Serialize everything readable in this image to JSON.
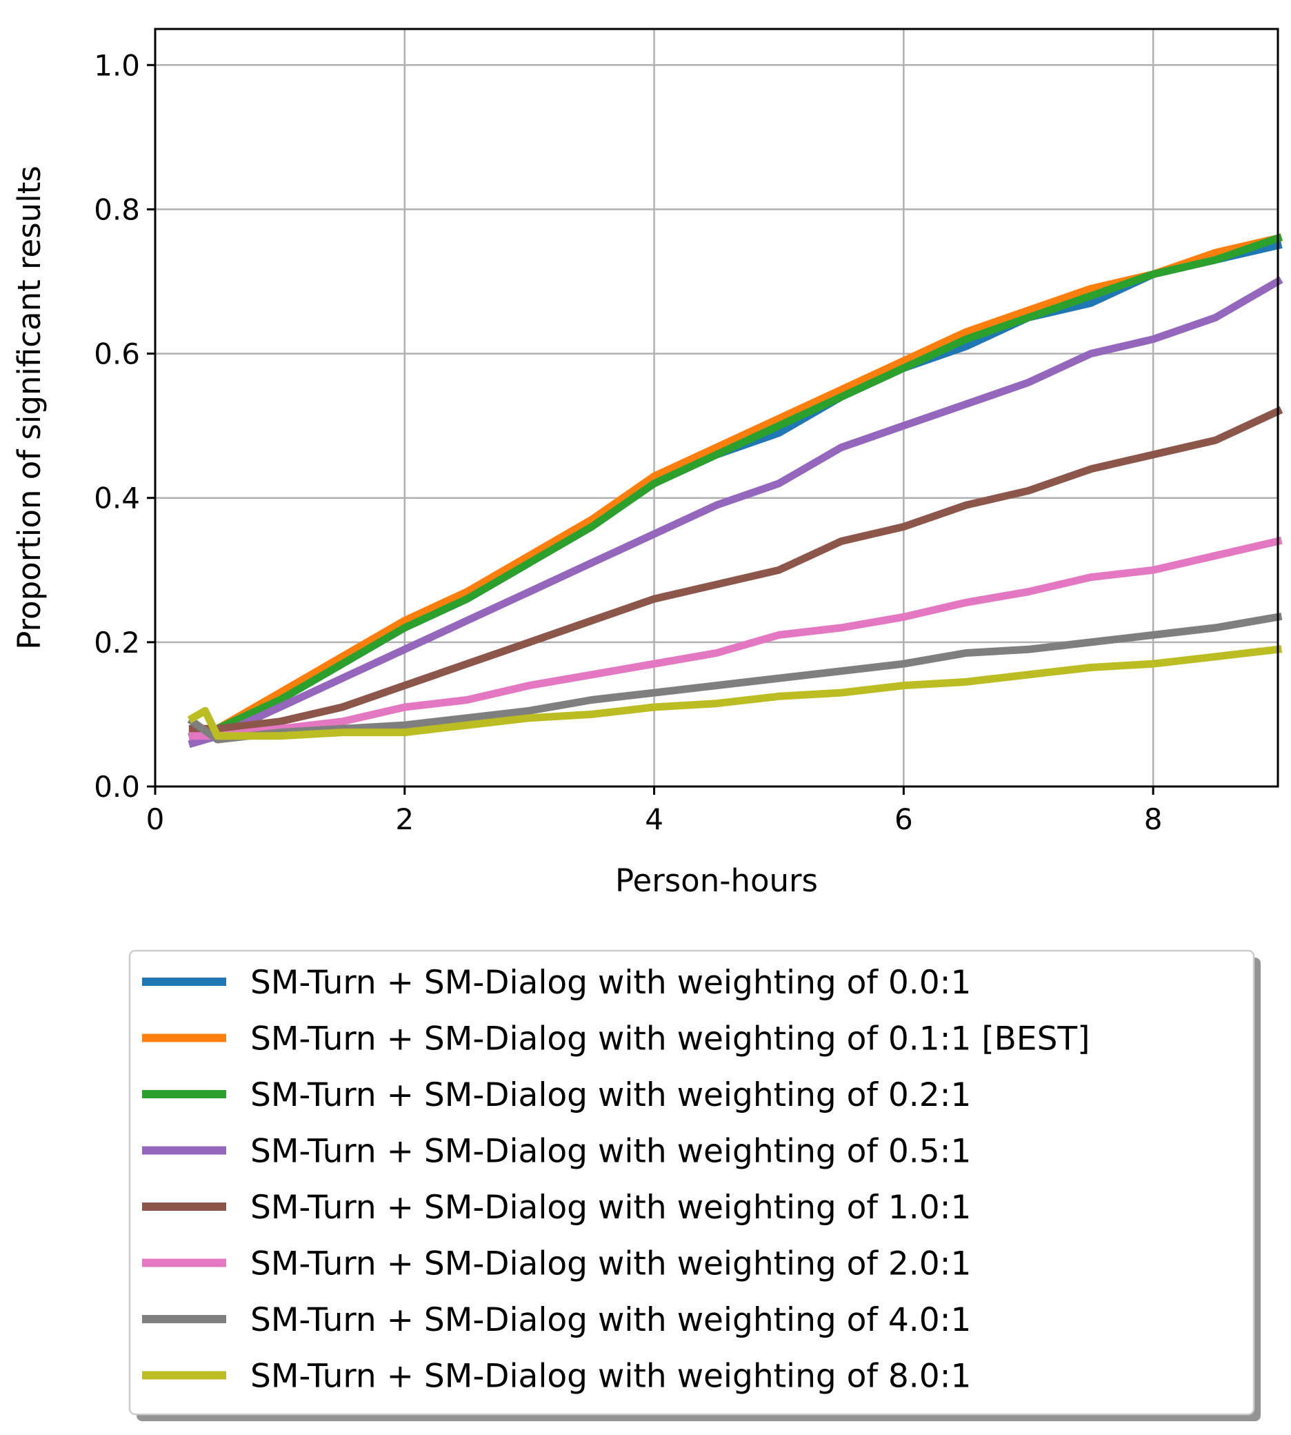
{
  "chart_data": {
    "type": "line",
    "title": "",
    "xlabel": "Person-hours",
    "ylabel": "Proportion of significant results",
    "xlim": [
      0,
      9
    ],
    "ylim": [
      0,
      1.05
    ],
    "xticks": [
      0,
      2,
      4,
      6,
      8
    ],
    "yticks": [
      0.0,
      0.2,
      0.4,
      0.6,
      0.8,
      1.0
    ],
    "xtick_labels": [
      "0",
      "2",
      "4",
      "6",
      "8"
    ],
    "ytick_labels": [
      "0.0",
      "0.2",
      "0.4",
      "0.6",
      "0.8",
      "1.0"
    ],
    "grid": true,
    "legend_position": "below",
    "series": [
      {
        "name": "SM-Turn + SM-Dialog with weighting of 0.0:1",
        "color": "#1f77b4",
        "x": [
          0.3,
          0.5,
          1.0,
          1.5,
          2.0,
          2.5,
          3.0,
          3.5,
          4.0,
          4.5,
          5.0,
          5.5,
          6.0,
          6.5,
          7.0,
          7.5,
          8.0,
          8.5,
          9.0
        ],
        "y": [
          0.07,
          0.08,
          0.12,
          0.17,
          0.22,
          0.26,
          0.31,
          0.37,
          0.42,
          0.46,
          0.49,
          0.54,
          0.58,
          0.61,
          0.65,
          0.67,
          0.71,
          0.73,
          0.75
        ]
      },
      {
        "name": "SM-Turn + SM-Dialog with weighting of 0.1:1 [BEST]",
        "color": "#ff7f0e",
        "x": [
          0.3,
          0.5,
          1.0,
          1.5,
          2.0,
          2.5,
          3.0,
          3.5,
          4.0,
          4.5,
          5.0,
          5.5,
          6.0,
          6.5,
          7.0,
          7.5,
          8.0,
          8.5,
          9.0
        ],
        "y": [
          0.07,
          0.08,
          0.13,
          0.18,
          0.23,
          0.27,
          0.32,
          0.37,
          0.43,
          0.47,
          0.51,
          0.55,
          0.59,
          0.63,
          0.66,
          0.69,
          0.71,
          0.74,
          0.76
        ]
      },
      {
        "name": "SM-Turn + SM-Dialog with weighting of 0.2:1",
        "color": "#2ca02c",
        "x": [
          0.3,
          0.5,
          1.0,
          1.5,
          2.0,
          2.5,
          3.0,
          3.5,
          4.0,
          4.5,
          5.0,
          5.5,
          6.0,
          6.5,
          7.0,
          7.5,
          8.0,
          8.5,
          9.0
        ],
        "y": [
          0.07,
          0.08,
          0.12,
          0.17,
          0.22,
          0.26,
          0.31,
          0.36,
          0.42,
          0.46,
          0.5,
          0.54,
          0.58,
          0.62,
          0.65,
          0.68,
          0.71,
          0.73,
          0.76
        ]
      },
      {
        "name": "SM-Turn + SM-Dialog with weighting of 0.5:1",
        "color": "#9467bd",
        "x": [
          0.3,
          0.5,
          1.0,
          1.5,
          2.0,
          2.5,
          3.0,
          3.5,
          4.0,
          4.5,
          5.0,
          5.5,
          6.0,
          6.5,
          7.0,
          7.5,
          8.0,
          8.5,
          9.0
        ],
        "y": [
          0.06,
          0.07,
          0.11,
          0.15,
          0.19,
          0.23,
          0.27,
          0.31,
          0.35,
          0.39,
          0.42,
          0.47,
          0.5,
          0.53,
          0.56,
          0.6,
          0.62,
          0.65,
          0.7
        ]
      },
      {
        "name": "SM-Turn + SM-Dialog with weighting of 1.0:1",
        "color": "#8c564b",
        "x": [
          0.3,
          0.5,
          1.0,
          1.5,
          2.0,
          2.5,
          3.0,
          3.5,
          4.0,
          4.5,
          5.0,
          5.5,
          6.0,
          6.5,
          7.0,
          7.5,
          8.0,
          8.5,
          9.0
        ],
        "y": [
          0.08,
          0.08,
          0.09,
          0.11,
          0.14,
          0.17,
          0.2,
          0.23,
          0.26,
          0.28,
          0.3,
          0.34,
          0.36,
          0.39,
          0.41,
          0.44,
          0.46,
          0.48,
          0.52
        ]
      },
      {
        "name": "SM-Turn + SM-Dialog with weighting of 2.0:1",
        "color": "#e377c2",
        "x": [
          0.3,
          0.5,
          1.0,
          1.5,
          2.0,
          2.5,
          3.0,
          3.5,
          4.0,
          4.5,
          5.0,
          5.5,
          6.0,
          6.5,
          7.0,
          7.5,
          8.0,
          8.5,
          9.0
        ],
        "y": [
          0.07,
          0.07,
          0.08,
          0.09,
          0.11,
          0.12,
          0.14,
          0.155,
          0.17,
          0.185,
          0.21,
          0.22,
          0.235,
          0.255,
          0.27,
          0.29,
          0.3,
          0.32,
          0.34
        ]
      },
      {
        "name": "SM-Turn + SM-Dialog with weighting of 4.0:1",
        "color": "#7f7f7f",
        "x": [
          0.3,
          0.5,
          1.0,
          1.5,
          2.0,
          2.5,
          3.0,
          3.5,
          4.0,
          4.5,
          5.0,
          5.5,
          6.0,
          6.5,
          7.0,
          7.5,
          8.0,
          8.5,
          9.0
        ],
        "y": [
          0.09,
          0.065,
          0.075,
          0.08,
          0.085,
          0.095,
          0.105,
          0.12,
          0.13,
          0.14,
          0.15,
          0.16,
          0.17,
          0.185,
          0.19,
          0.2,
          0.21,
          0.22,
          0.235
        ]
      },
      {
        "name": "SM-Turn + SM-Dialog with weighting of 8.0:1",
        "color": "#bcbd22",
        "x": [
          0.3,
          0.4,
          0.5,
          1.0,
          1.5,
          2.0,
          2.5,
          3.0,
          3.5,
          4.0,
          4.5,
          5.0,
          5.5,
          6.0,
          6.5,
          7.0,
          7.5,
          8.0,
          8.5,
          9.0
        ],
        "y": [
          0.095,
          0.105,
          0.07,
          0.07,
          0.075,
          0.075,
          0.085,
          0.095,
          0.1,
          0.11,
          0.115,
          0.125,
          0.13,
          0.14,
          0.145,
          0.155,
          0.165,
          0.17,
          0.18,
          0.19
        ]
      }
    ]
  }
}
